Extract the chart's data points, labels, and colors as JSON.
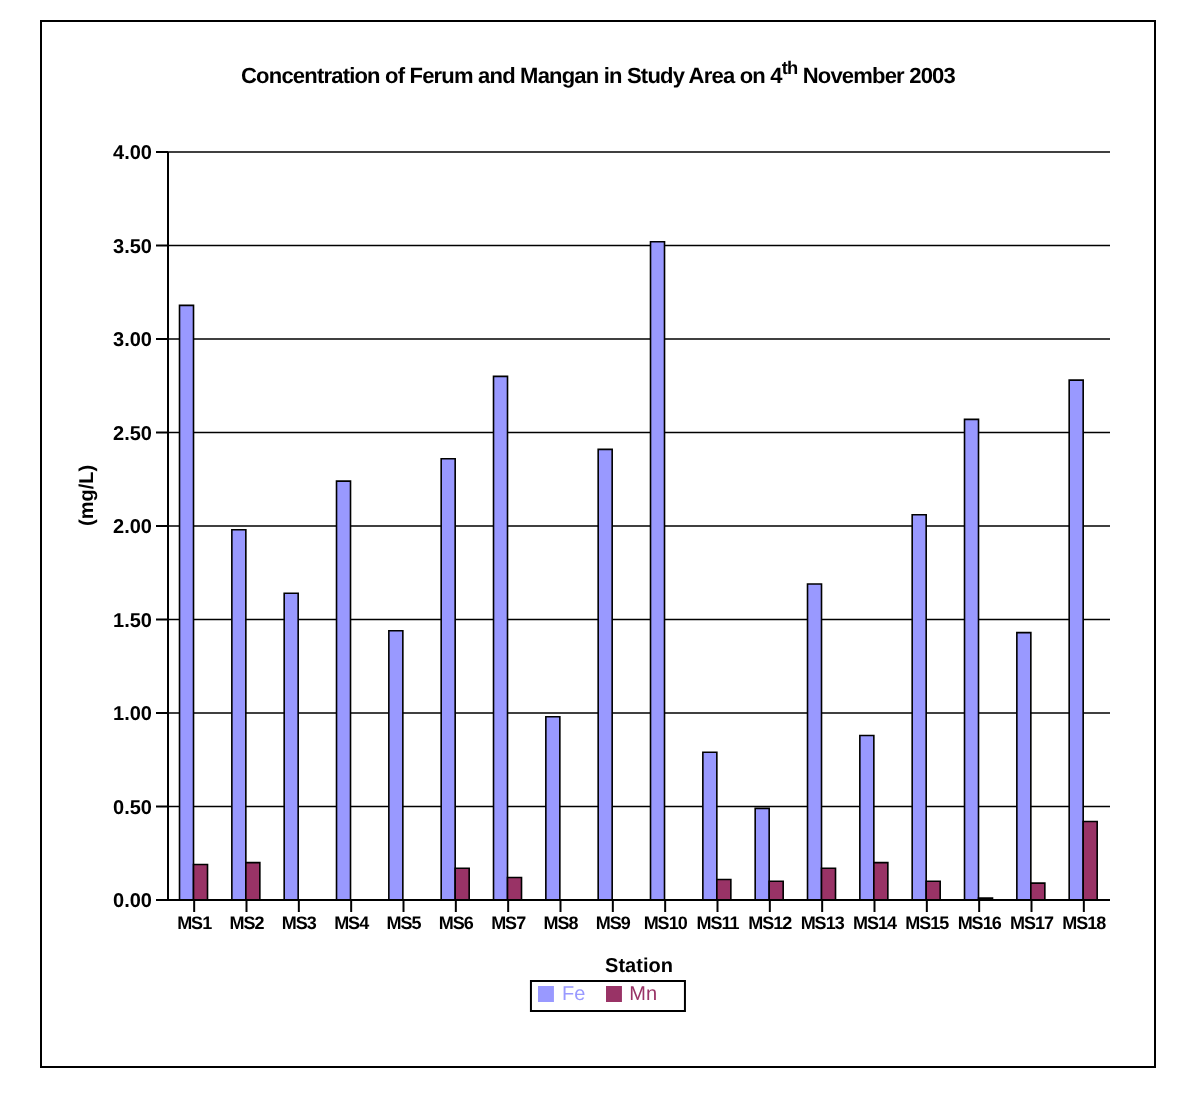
{
  "chart_data": {
    "type": "bar",
    "title": "Concentration of Ferum and Mangan in Study Area on 4$^{th}$ November 2003",
    "xlabel": "Station",
    "ylabel": "(mg/L)",
    "categories": [
      "MS1",
      "MS2",
      "MS3",
      "MS4",
      "MS5",
      "MS6",
      "MS7",
      "MS8",
      "MS9",
      "MS10",
      "MS11",
      "MS12",
      "MS13",
      "MS14",
      "MS15",
      "MS16",
      "MS17",
      "MS18"
    ],
    "series": [
      {
        "name": "Fe",
        "color": "#9999ff",
        "values": [
          3.18,
          1.98,
          1.64,
          2.24,
          1.44,
          2.36,
          2.8,
          0.98,
          2.41,
          3.52,
          0.79,
          0.49,
          1.69,
          0.88,
          2.06,
          2.57,
          1.43,
          2.78
        ]
      },
      {
        "name": "Mn",
        "color": "#993366",
        "values": [
          0.19,
          0.2,
          0,
          0,
          0,
          0.17,
          0.12,
          0,
          0,
          0,
          0.11,
          0.1,
          0.17,
          0.2,
          0.1,
          0.01,
          0.09,
          0.42
        ]
      }
    ],
    "ylim": [
      0,
      4
    ],
    "yticks": [
      {
        "value": 0,
        "label": "0.00"
      },
      {
        "value": 0.5,
        "label": "0.50"
      },
      {
        "value": 1,
        "label": "1.00"
      },
      {
        "value": 1.5,
        "label": "1.50"
      },
      {
        "value": 2,
        "label": "2.00"
      },
      {
        "value": 2.5,
        "label": "2.50"
      },
      {
        "value": 3,
        "label": "3.00"
      },
      {
        "value": 3.5,
        "label": "3.50"
      },
      {
        "value": 4,
        "label": "4.00"
      }
    ],
    "grid": "y",
    "legend": "bottom"
  }
}
